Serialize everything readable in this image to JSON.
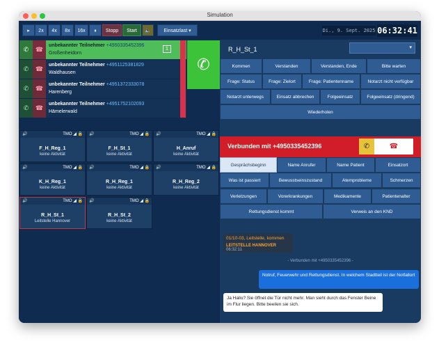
{
  "window": {
    "title": "Simulation"
  },
  "toolbar": {
    "speeds": [
      "▸",
      "2x",
      "4x",
      "8x",
      "16x",
      "⏸"
    ],
    "stop_label": "Stopp",
    "start_label": "Start",
    "mute_icon": "🔈",
    "mode_label": "Einsatzlast ▾"
  },
  "clock": {
    "date": "Di., 9. Sept. 2025",
    "time": "06:32:41"
  },
  "calls": [
    {
      "name": "unbekannter Teilnehmer",
      "number": "+4950335452396",
      "place": "Großenheidorn",
      "count": "1"
    },
    {
      "name": "unbekannter Teilnehmer",
      "number": "+4951125381829",
      "place": "Waldhausen"
    },
    {
      "name": "unbekannter Teilnehmer",
      "number": "+4951372333078",
      "place": "Harenberg"
    },
    {
      "name": "unbekannter Teilnehmer",
      "number": "+4951752102093",
      "place": "Hämelerwald"
    }
  ],
  "tiles": [
    {
      "net": "TMO",
      "name": "F_H_Reg_1",
      "status": "keine Aktivität"
    },
    {
      "net": "TMO",
      "name": "F_H_St_1",
      "status": "keine Aktivität"
    },
    {
      "net": "TMO",
      "name": "H_Anruf",
      "status": "keine Aktivität"
    },
    {
      "net": "TMO",
      "name": "K_H_Reg_1",
      "status": "keine Aktivität"
    },
    {
      "net": "TMO",
      "name": "R_H_Reg_1",
      "status": "keine Aktivität"
    },
    {
      "net": "TMO",
      "name": "R_H_Reg_2",
      "status": "keine Aktivität"
    },
    {
      "net": "TMO",
      "name": "R_H_St_1",
      "status": "Leitstelle Hannover"
    },
    {
      "net": "TMO",
      "name": "R_H_St_2",
      "status": "keine Aktivität"
    }
  ],
  "right": {
    "title": "R_H_St_1",
    "select_value": "▾",
    "radio_buttons": [
      "Kommen",
      "Verstanden",
      "Verstanden, Ende",
      "Bitte warten",
      "Frage: Status",
      "Frage: Zielort",
      "Frage: Patientenname",
      "Notarzt nicht verfügbar",
      "Notarzt unterwegs",
      "Einsatz abbrechen",
      "Folgeeinsatz",
      "Folgeeinsatz (dringend)",
      "Wiederholen"
    ],
    "connected_text": "Verbunden mit +4950335452396",
    "phone_buttons": [
      "Gesprächsbeginn",
      "Name Anrufer",
      "Name Patient",
      "Einsatzort",
      "Was ist passiert",
      "Bewusstseinszustand",
      "Atemprobleme",
      "Schmerzen",
      "Verletzungen",
      "Vorerkrankungen",
      "Medikamente",
      "Patientenalter",
      "Rettungsdienst kommt",
      "Verweis an den KND"
    ],
    "log_line1": "01/10-03, Leitstelle, kommen",
    "log_sender": "LEITSTELLE HANNOVER",
    "log_time": "06:32:11",
    "divider": "- Verbunden mit +4950335452396 -",
    "msg_out": "Notruf, Feuerwehr und Rettungsdienst. In welchem Stadtteil ist der Notfallort",
    "msg_in": "Ja Hallo? Sie öffnet die Tür nicht mehr. Man sieht durch das Fenster Beine im Flur liegen. Bitte beeilen sie sich."
  },
  "colors": {
    "accent": "#2f5d93",
    "alert": "#d01d27",
    "ok": "#3dc33a"
  }
}
